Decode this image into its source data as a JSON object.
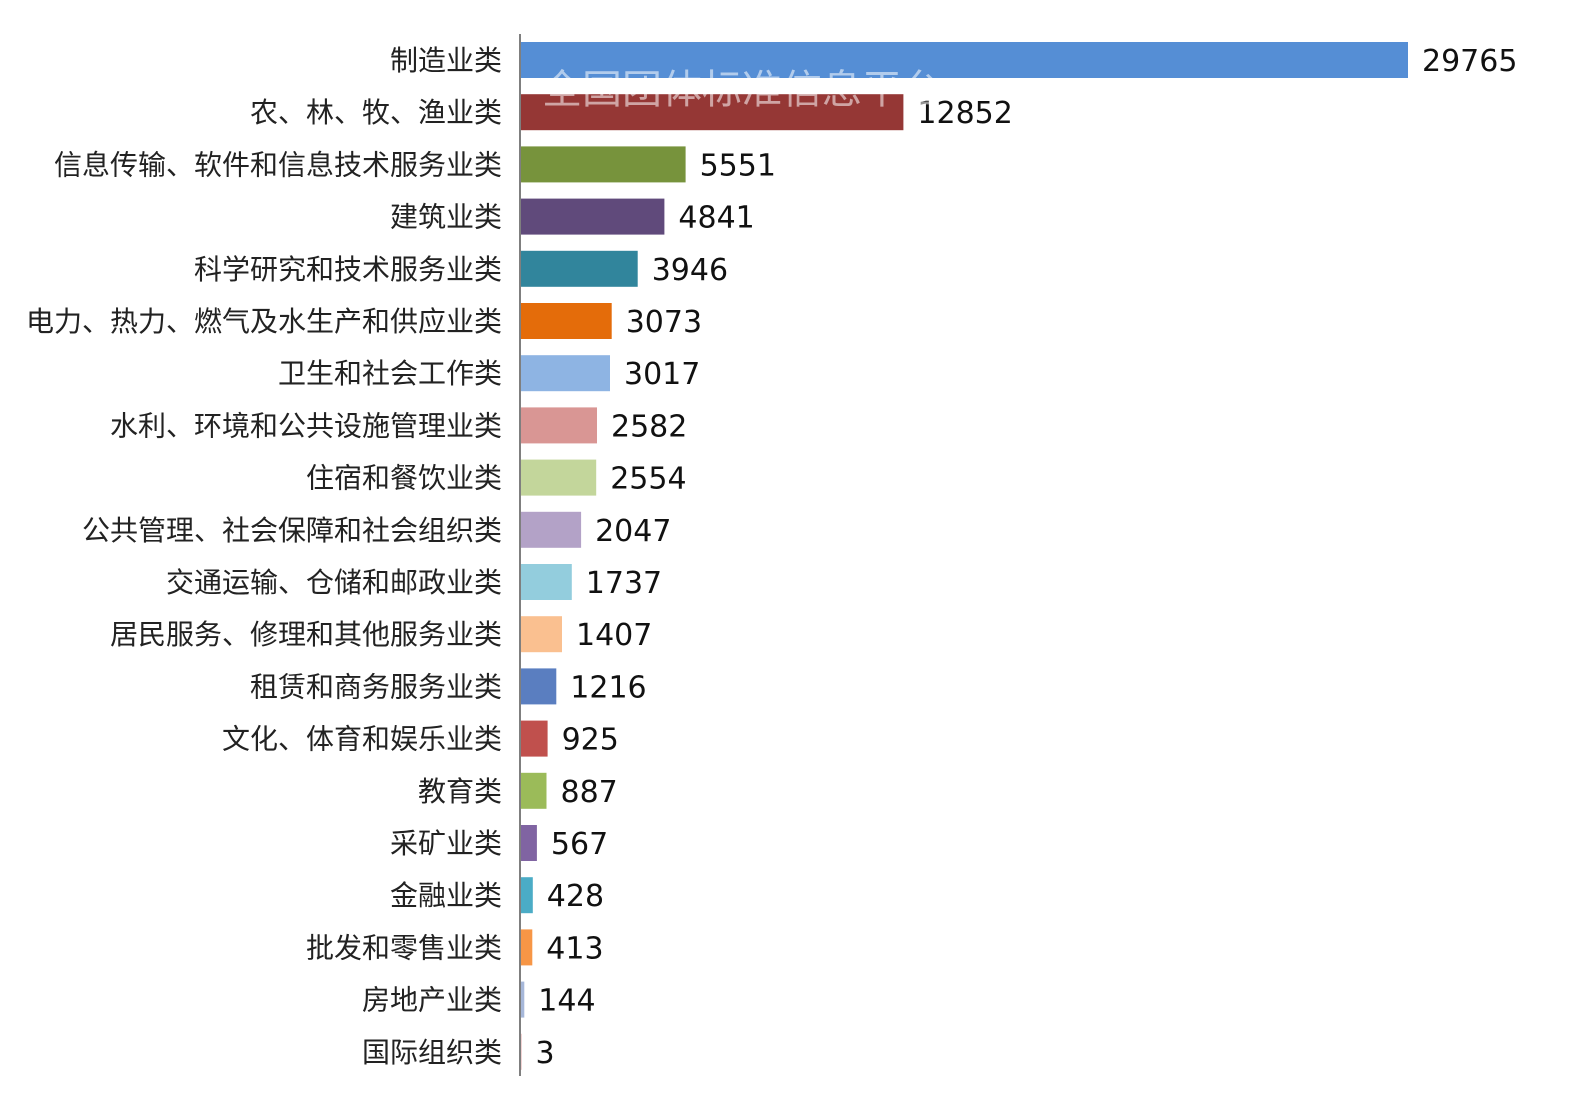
{
  "chart_data": {
    "type": "bar",
    "orientation": "horizontal",
    "title": "",
    "xlabel": "",
    "ylabel": "",
    "grid": false,
    "legend": "none",
    "xlim": [
      0,
      29765
    ],
    "watermark": "全国团体标准信息平台",
    "categories": [
      "制造业类",
      "农、林、牧、渔业类",
      "信息传输、软件和信息技术服务业类",
      "建筑业类",
      "科学研究和技术服务业类",
      "电力、热力、燃气及水生产和供应业类",
      "卫生和社会工作类",
      "水利、环境和公共设施管理业类",
      "住宿和餐饮业类",
      "公共管理、社会保障和社会组织类",
      "交通运输、仓储和邮政业类",
      "居民服务、修理和其他服务业类",
      "租赁和商务服务业类",
      "文化、体育和娱乐业类",
      "教育类",
      "采矿业类",
      "金融业类",
      "批发和零售业类",
      "房地产业类",
      "国际组织类"
    ],
    "values": [
      29765,
      12852,
      5551,
      4841,
      3946,
      3073,
      3017,
      2582,
      2554,
      2047,
      1737,
      1407,
      1216,
      925,
      887,
      567,
      428,
      413,
      144,
      3
    ],
    "colors": [
      "#558ED5",
      "#953735",
      "#77933C",
      "#604A7B",
      "#31859C",
      "#E46C0A",
      "#8EB4E3",
      "#D99694",
      "#C3D69B",
      "#B3A2C7",
      "#93CDDD",
      "#FAC090",
      "#5A7EC0",
      "#C0504D",
      "#9BBB59",
      "#8064A2",
      "#4BACC6",
      "#F79646",
      "#A6B7D9",
      "#E6A9A8"
    ],
    "axis_color": "#7F7F7F"
  }
}
